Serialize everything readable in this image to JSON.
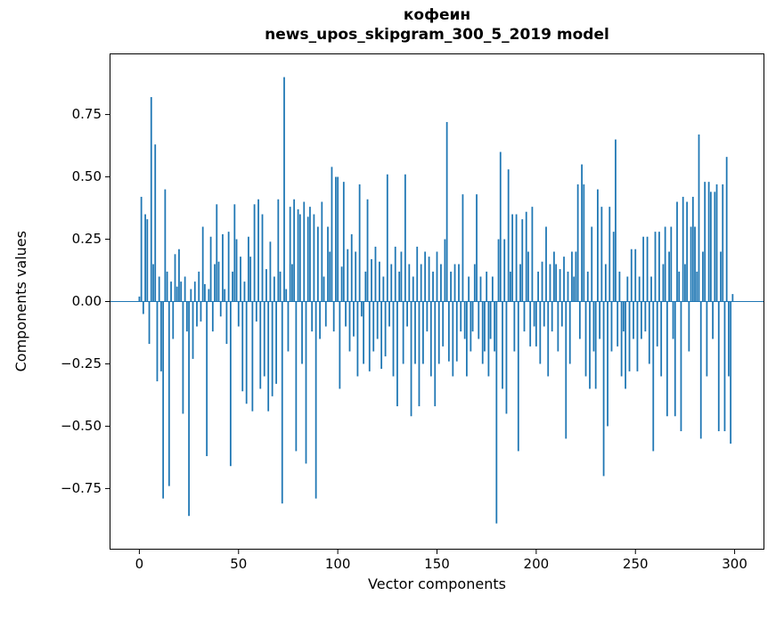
{
  "figure": {
    "title_line1": "кофеин",
    "title_line2": "news_upos_skipgram_300_5_2019 model",
    "xlabel": "Vector components",
    "ylabel": "Components values"
  },
  "chart_data": {
    "type": "bar",
    "title": "кофеин — news_upos_skipgram_300_5_2019 model",
    "xlabel": "Vector components",
    "ylabel": "Components values",
    "bar_color": "#1f77b4",
    "background": "#ffffff",
    "grid": false,
    "legend": null,
    "zero_line": true,
    "xlim": [
      -15,
      315
    ],
    "ylim": [
      -0.995,
      0.995
    ],
    "xticks": [
      0,
      50,
      100,
      150,
      200,
      250,
      300
    ],
    "xtick_labels": [
      "0",
      "50",
      "100",
      "150",
      "200",
      "250",
      "300"
    ],
    "yticks": [
      -0.75,
      -0.5,
      -0.25,
      0,
      0.25,
      0.5,
      0.75
    ],
    "ytick_labels": [
      "−0.75",
      "−0.50",
      "−0.25",
      "0.00",
      "0.25",
      "0.50",
      "0.75"
    ],
    "n_components": 300,
    "values": [
      0.02,
      0.42,
      -0.05,
      0.35,
      0.33,
      -0.17,
      0.82,
      0.15,
      0.63,
      -0.32,
      0.1,
      -0.28,
      -0.79,
      0.45,
      0.12,
      -0.74,
      0.08,
      -0.15,
      0.19,
      0.06,
      0.21,
      0.08,
      -0.45,
      0.1,
      -0.12,
      -0.86,
      0.05,
      -0.23,
      0.08,
      -0.1,
      0.12,
      -0.08,
      0.3,
      0.07,
      -0.62,
      0.05,
      0.26,
      -0.12,
      0.15,
      0.39,
      0.16,
      -0.06,
      0.27,
      0.05,
      -0.17,
      0.28,
      -0.66,
      0.12,
      0.39,
      0.25,
      -0.1,
      0.18,
      -0.36,
      0.08,
      -0.41,
      0.26,
      0.18,
      -0.44,
      0.39,
      -0.08,
      0.41,
      -0.35,
      0.35,
      -0.3,
      0.13,
      -0.44,
      0.24,
      -0.38,
      0.1,
      -0.33,
      0.41,
      0.12,
      -0.81,
      0.9,
      0.05,
      -0.2,
      0.38,
      0.15,
      0.41,
      -0.6,
      0.37,
      0.35,
      -0.25,
      0.4,
      -0.65,
      0.34,
      0.38,
      -0.12,
      0.35,
      -0.79,
      0.3,
      -0.15,
      0.4,
      0.1,
      -0.1,
      0.3,
      0.2,
      0.54,
      -0.12,
      0.5,
      0.5,
      -0.35,
      0.14,
      0.48,
      -0.1,
      0.21,
      -0.2,
      0.27,
      -0.14,
      0.2,
      -0.3,
      0.47,
      -0.06,
      -0.25,
      0.12,
      0.41,
      -0.28,
      0.17,
      -0.2,
      0.22,
      -0.15,
      0.16,
      -0.27,
      0.1,
      -0.22,
      0.51,
      -0.1,
      0.15,
      -0.3,
      0.22,
      -0.42,
      0.12,
      0.2,
      -0.25,
      0.51,
      -0.1,
      0.15,
      -0.46,
      0.1,
      -0.25,
      0.22,
      -0.42,
      0.15,
      -0.25,
      0.2,
      -0.12,
      0.18,
      -0.3,
      0.12,
      -0.42,
      0.2,
      -0.25,
      0.15,
      -0.18,
      0.25,
      0.72,
      -0.24,
      0.12,
      -0.3,
      0.15,
      -0.24,
      0.15,
      -0.12,
      0.43,
      -0.15,
      -0.3,
      0.1,
      -0.2,
      -0.12,
      0.15,
      0.43,
      -0.15,
      0.1,
      -0.25,
      -0.2,
      0.12,
      -0.3,
      -0.15,
      0.1,
      -0.2,
      -0.89,
      0.25,
      0.6,
      -0.35,
      0.25,
      -0.45,
      0.53,
      0.12,
      0.35,
      -0.2,
      0.35,
      -0.6,
      0.15,
      0.33,
      -0.12,
      0.36,
      0.2,
      -0.18,
      0.38,
      -0.1,
      -0.18,
      0.12,
      -0.25,
      0.16,
      -0.1,
      0.3,
      -0.3,
      0.15,
      -0.12,
      0.2,
      0.15,
      -0.2,
      0.13,
      -0.1,
      0.18,
      -0.55,
      0.12,
      -0.25,
      0.2,
      0.1,
      0.2,
      0.47,
      -0.15,
      0.55,
      0.47,
      -0.3,
      0.12,
      -0.35,
      0.3,
      -0.2,
      -0.35,
      0.45,
      -0.15,
      0.38,
      -0.7,
      0.15,
      -0.5,
      0.38,
      -0.2,
      0.28,
      0.65,
      -0.18,
      0.12,
      -0.3,
      -0.12,
      -0.35,
      0.1,
      -0.28,
      0.21,
      -0.15,
      0.21,
      -0.28,
      0.1,
      -0.15,
      0.26,
      -0.12,
      0.26,
      -0.25,
      0.1,
      -0.6,
      0.28,
      -0.18,
      0.28,
      -0.3,
      0.15,
      0.3,
      -0.46,
      0.2,
      0.3,
      -0.15,
      -0.46,
      0.4,
      0.12,
      -0.52,
      0.42,
      0.15,
      0.4,
      -0.2,
      0.3,
      0.42,
      0.3,
      0.12,
      0.67,
      -0.55,
      0.2,
      0.48,
      -0.3,
      0.48,
      0.44,
      -0.15,
      0.44,
      0.47,
      -0.52,
      0.2,
      0.47,
      -0.52,
      0.58,
      -0.3,
      -0.57,
      0.03
    ]
  }
}
